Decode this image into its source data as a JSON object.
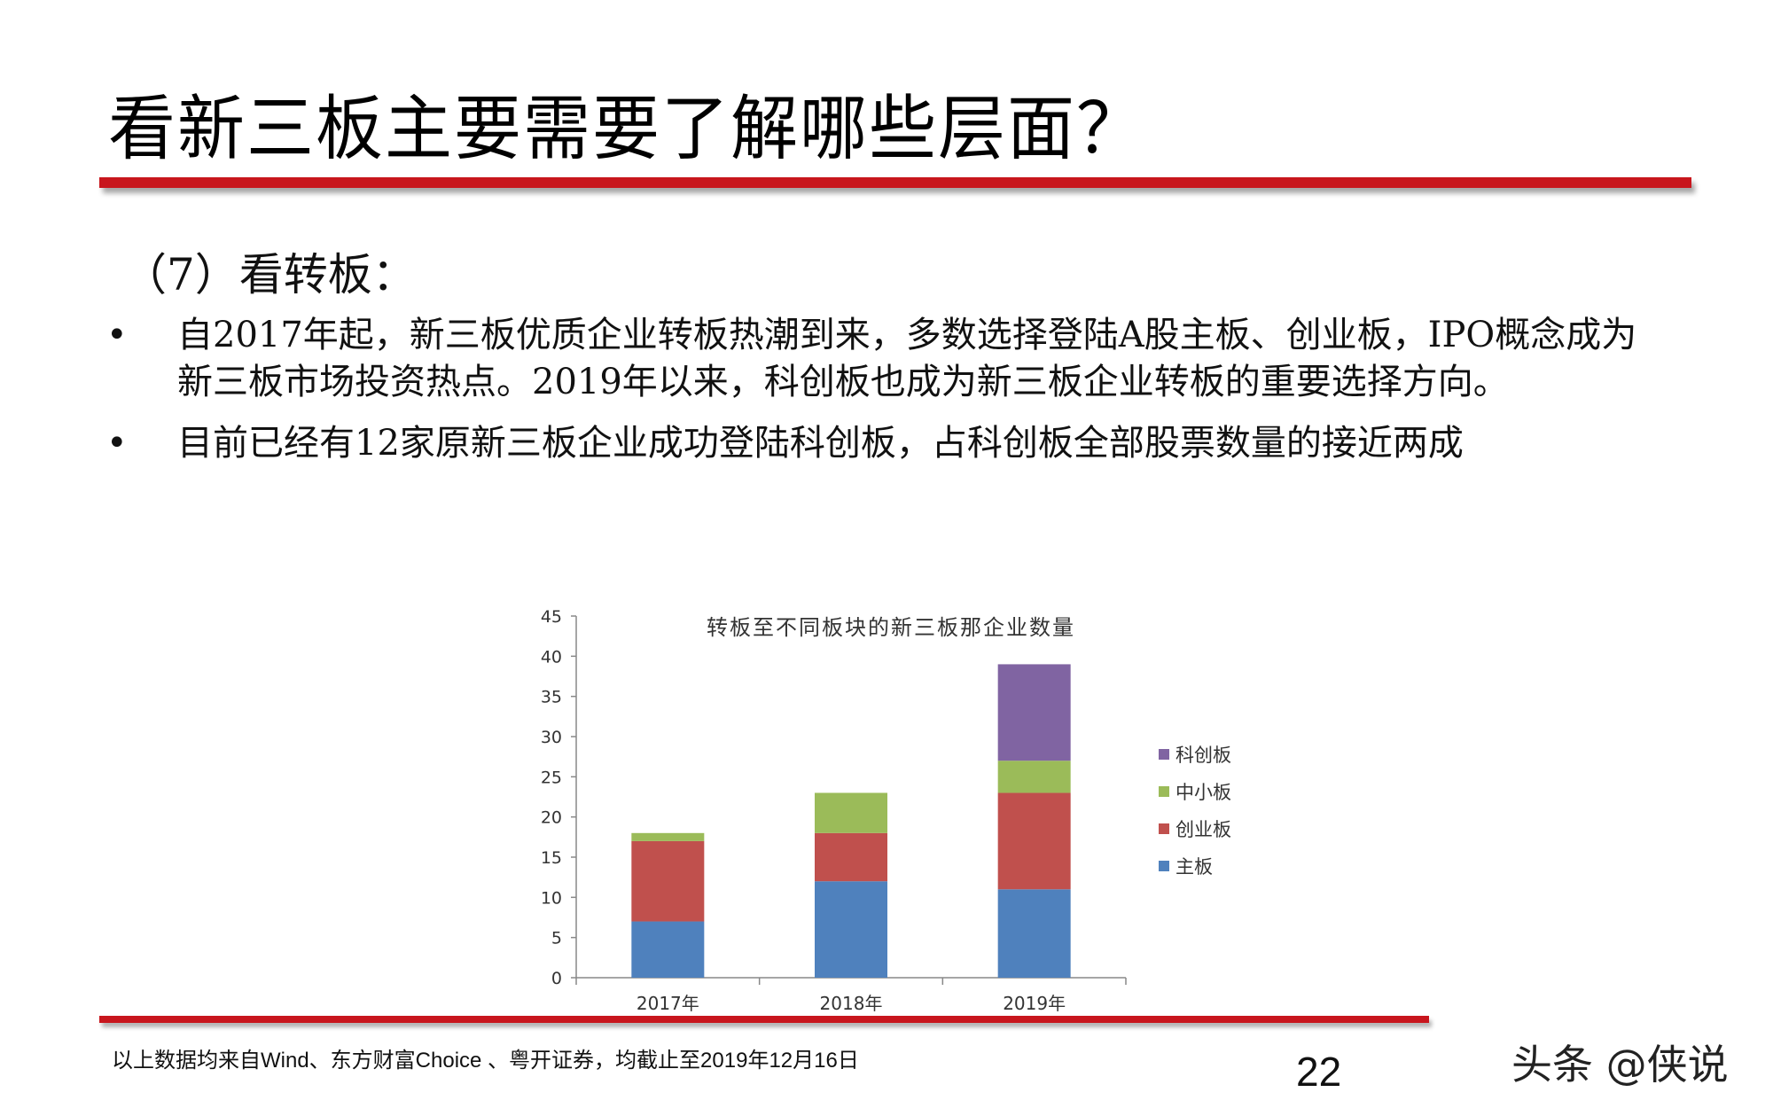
{
  "slide": {
    "title": "看新三板主要需要了解哪些层面？",
    "subtitle": "（7）看转板：",
    "bullets": [
      {
        "marker": "•",
        "text": "自2017年起，新三板优质企业转板热潮到来，多数选择登陆A股主板、创业板，IPO概念成为新三板市场投资热点。2019年以来，科创板也成为新三板企业转板的重要选择方向。"
      },
      {
        "marker": "•",
        "text": "目前已经有12家原新三板企业成功登陆科创板，占科创板全部股票数量的接近两成"
      }
    ],
    "footnote": "以上数据均来自Wind、东方财富Choice 、粤开证券，均截止至2019年12月16日",
    "page_number": "22",
    "watermark": "头条 @侠说",
    "accent_color": "#c8161d"
  },
  "chart_data": {
    "type": "bar",
    "stacked": true,
    "title": "转板至不同板块的新三板那企业数量",
    "xlabel": "",
    "ylabel": "",
    "categories": [
      "2017年",
      "2018年",
      "2019年"
    ],
    "series": [
      {
        "name": "主板",
        "color": "#4f81bd",
        "values": [
          7,
          12,
          11
        ]
      },
      {
        "name": "创业板",
        "color": "#c0504d",
        "values": [
          10,
          6,
          12
        ]
      },
      {
        "name": "中小板",
        "color": "#9bbb59",
        "values": [
          1,
          5,
          4
        ]
      },
      {
        "name": "科创板",
        "color": "#8064a2",
        "values": [
          0,
          0,
          12
        ]
      }
    ],
    "ylim": [
      0,
      45
    ],
    "yticks": [
      "0",
      "5",
      "10",
      "15",
      "20",
      "25",
      "30",
      "35",
      "40",
      "45"
    ],
    "grid": false,
    "legend_position": "right",
    "legend_order": [
      "科创板",
      "中小板",
      "创业板",
      "主板"
    ]
  }
}
